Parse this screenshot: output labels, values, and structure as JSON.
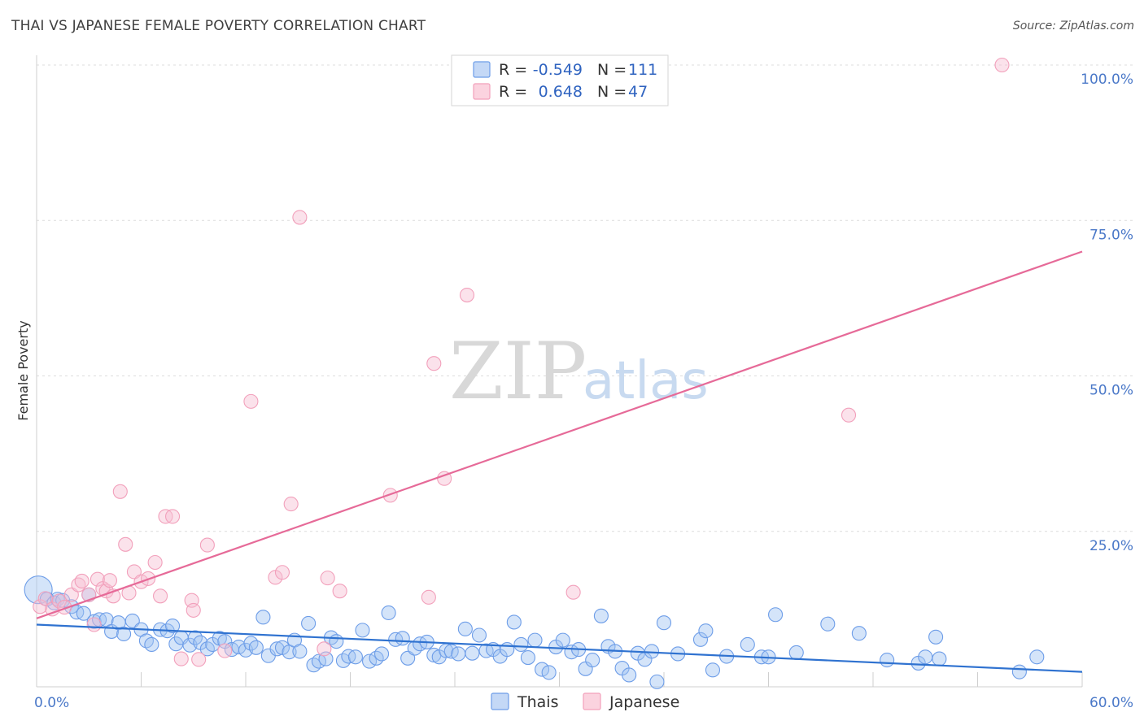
{
  "title": "THAI VS JAPANESE FEMALE POVERTY CORRELATION CHART",
  "source": "Source: ZipAtlas.com",
  "watermark": {
    "zip": "ZIP",
    "atlas": "atlas"
  },
  "colors": {
    "thais": "#6d9de8",
    "japanese": "#f2a0bb",
    "thais_line": "#2f72d0",
    "japanese_line": "#e66a98",
    "tick": "#4a78c8"
  },
  "legend": {
    "r_label": "R =",
    "n_label": "N =",
    "thais": {
      "r": "-0.549",
      "n": "111"
    },
    "japanese": {
      "r": "0.648",
      "n": "47"
    }
  },
  "bottom_legend": [
    "Thais",
    "Japanese"
  ],
  "chart_data": {
    "type": "scatter",
    "ylabel": "Female Poverty",
    "xlim": [
      0,
      60
    ],
    "ylim": [
      0,
      100
    ],
    "x_ticks": [
      "0.0%",
      "60.0%"
    ],
    "y_ticks": [
      {
        "value": 25,
        "label": "25.0%"
      },
      {
        "value": 50,
        "label": "50.0%"
      },
      {
        "value": 75,
        "label": "75.0%"
      },
      {
        "value": 100,
        "label": "100.0%"
      }
    ],
    "grid": true,
    "series": [
      {
        "name": "Thais",
        "trend": [
          [
            0,
            10.0
          ],
          [
            60,
            2.4
          ]
        ],
        "points": [
          [
            0.1,
            15.6
          ],
          [
            0.6,
            14.1
          ],
          [
            1.0,
            13.5
          ],
          [
            1.2,
            14.1
          ],
          [
            1.5,
            13.9
          ],
          [
            2.0,
            12.9
          ],
          [
            2.3,
            12.0
          ],
          [
            2.7,
            11.8
          ],
          [
            3.0,
            14.8
          ],
          [
            3.3,
            10.5
          ],
          [
            3.6,
            10.8
          ],
          [
            4.0,
            10.8
          ],
          [
            4.3,
            8.9
          ],
          [
            4.7,
            10.3
          ],
          [
            5.0,
            8.5
          ],
          [
            5.5,
            10.6
          ],
          [
            6.0,
            9.2
          ],
          [
            6.3,
            7.4
          ],
          [
            6.6,
            6.8
          ],
          [
            7.1,
            9.2
          ],
          [
            7.5,
            9.0
          ],
          [
            7.8,
            9.8
          ],
          [
            8.0,
            6.9
          ],
          [
            8.3,
            7.9
          ],
          [
            8.8,
            6.7
          ],
          [
            9.1,
            7.9
          ],
          [
            9.4,
            7.1
          ],
          [
            9.8,
            6.1
          ],
          [
            10.1,
            6.8
          ],
          [
            10.5,
            7.8
          ],
          [
            10.8,
            7.3
          ],
          [
            11.2,
            6.0
          ],
          [
            11.6,
            6.4
          ],
          [
            12.0,
            5.9
          ],
          [
            12.3,
            7.0
          ],
          [
            12.6,
            6.3
          ],
          [
            13.0,
            11.2
          ],
          [
            13.3,
            5.0
          ],
          [
            13.8,
            6.1
          ],
          [
            14.1,
            6.3
          ],
          [
            14.5,
            5.6
          ],
          [
            14.8,
            7.5
          ],
          [
            15.1,
            5.7
          ],
          [
            15.6,
            10.2
          ],
          [
            15.9,
            3.5
          ],
          [
            16.2,
            4.1
          ],
          [
            16.6,
            4.5
          ],
          [
            16.9,
            7.9
          ],
          [
            17.2,
            7.3
          ],
          [
            17.6,
            4.2
          ],
          [
            17.9,
            4.9
          ],
          [
            18.3,
            4.8
          ],
          [
            18.7,
            9.1
          ],
          [
            19.1,
            4.1
          ],
          [
            19.5,
            4.6
          ],
          [
            19.8,
            5.3
          ],
          [
            20.2,
            11.9
          ],
          [
            20.6,
            7.6
          ],
          [
            21.0,
            7.8
          ],
          [
            21.3,
            4.6
          ],
          [
            21.7,
            6.2
          ],
          [
            22.0,
            6.9
          ],
          [
            22.4,
            7.2
          ],
          [
            22.8,
            5.1
          ],
          [
            23.1,
            4.8
          ],
          [
            23.5,
            5.8
          ],
          [
            23.8,
            5.7
          ],
          [
            24.2,
            5.3
          ],
          [
            24.6,
            9.3
          ],
          [
            25.0,
            5.4
          ],
          [
            25.4,
            8.3
          ],
          [
            25.8,
            5.8
          ],
          [
            26.2,
            6.0
          ],
          [
            26.6,
            4.9
          ],
          [
            27.0,
            6.0
          ],
          [
            27.4,
            10.4
          ],
          [
            27.8,
            6.8
          ],
          [
            28.2,
            4.7
          ],
          [
            28.6,
            7.5
          ],
          [
            29.0,
            2.8
          ],
          [
            29.4,
            2.3
          ],
          [
            29.8,
            6.4
          ],
          [
            30.2,
            7.5
          ],
          [
            30.7,
            5.6
          ],
          [
            31.1,
            6.0
          ],
          [
            31.5,
            2.9
          ],
          [
            31.9,
            4.3
          ],
          [
            32.4,
            11.4
          ],
          [
            32.8,
            6.5
          ],
          [
            33.2,
            5.7
          ],
          [
            33.6,
            3.0
          ],
          [
            34.0,
            1.9
          ],
          [
            34.5,
            5.4
          ],
          [
            34.9,
            4.4
          ],
          [
            35.3,
            5.7
          ],
          [
            35.6,
            0.8
          ],
          [
            36.0,
            10.3
          ],
          [
            36.8,
            5.3
          ],
          [
            38.1,
            7.6
          ],
          [
            38.4,
            9.0
          ],
          [
            38.8,
            2.7
          ],
          [
            39.6,
            4.9
          ],
          [
            40.8,
            6.8
          ],
          [
            41.6,
            4.8
          ],
          [
            42.0,
            4.8
          ],
          [
            42.4,
            11.6
          ],
          [
            43.6,
            5.5
          ],
          [
            45.4,
            10.1
          ],
          [
            47.2,
            8.6
          ],
          [
            48.8,
            4.3
          ],
          [
            50.6,
            3.8
          ],
          [
            51.0,
            4.8
          ],
          [
            51.6,
            8.0
          ],
          [
            51.8,
            4.5
          ],
          [
            56.4,
            2.4
          ],
          [
            57.4,
            4.8
          ]
        ]
      },
      {
        "name": "Japanese",
        "trend": [
          [
            0,
            11.0
          ],
          [
            60,
            70.0
          ]
        ],
        "points": [
          [
            0.2,
            12.9
          ],
          [
            0.5,
            14.2
          ],
          [
            0.9,
            12.5
          ],
          [
            1.3,
            13.8
          ],
          [
            1.6,
            12.8
          ],
          [
            2.0,
            14.8
          ],
          [
            2.4,
            16.4
          ],
          [
            2.6,
            17.0
          ],
          [
            3.0,
            14.8
          ],
          [
            3.3,
            10.0
          ],
          [
            3.5,
            17.3
          ],
          [
            3.8,
            15.8
          ],
          [
            4.0,
            15.4
          ],
          [
            4.2,
            17.1
          ],
          [
            4.4,
            14.6
          ],
          [
            4.8,
            31.4
          ],
          [
            5.1,
            22.9
          ],
          [
            5.3,
            15.1
          ],
          [
            5.6,
            18.5
          ],
          [
            6.0,
            16.9
          ],
          [
            6.4,
            17.4
          ],
          [
            6.8,
            20.0
          ],
          [
            7.1,
            14.6
          ],
          [
            7.4,
            27.4
          ],
          [
            7.8,
            27.4
          ],
          [
            8.3,
            4.5
          ],
          [
            8.9,
            13.9
          ],
          [
            9.0,
            12.3
          ],
          [
            9.3,
            4.4
          ],
          [
            9.8,
            22.8
          ],
          [
            10.8,
            5.8
          ],
          [
            12.3,
            45.9
          ],
          [
            13.7,
            17.6
          ],
          [
            14.1,
            18.4
          ],
          [
            14.6,
            29.4
          ],
          [
            15.1,
            75.5
          ],
          [
            16.5,
            6.1
          ],
          [
            16.7,
            17.5
          ],
          [
            17.4,
            15.4
          ],
          [
            20.3,
            30.8
          ],
          [
            22.5,
            14.4
          ],
          [
            22.8,
            52.0
          ],
          [
            23.4,
            33.5
          ],
          [
            24.7,
            63.0
          ],
          [
            30.8,
            15.2
          ],
          [
            46.6,
            43.7
          ],
          [
            55.4,
            100.0
          ]
        ]
      }
    ]
  }
}
